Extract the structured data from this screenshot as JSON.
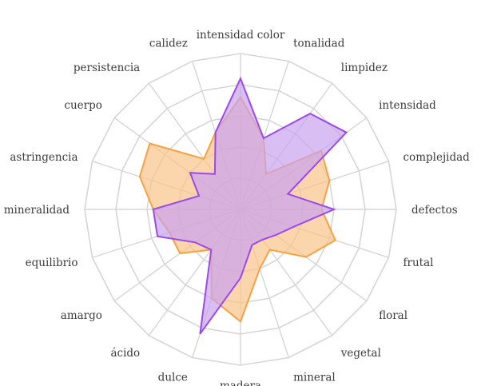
{
  "chart_data": {
    "type": "radar",
    "title": "",
    "categories": [
      "intensidad color",
      "tonalidad",
      "limpidez",
      "intensidad",
      "complejidad",
      "defectos",
      "frutal",
      "floral",
      "vegetal",
      "mineral",
      "madera",
      "dulce",
      "ácido",
      "amargo",
      "equilibrio",
      "mineralidad",
      "astringencia",
      "cuerpo",
      "persistencia",
      "calidez"
    ],
    "rlim": [
      0,
      5
    ],
    "rings": 5,
    "grid": true,
    "legend": "none",
    "series": [
      {
        "color": "#f5a243",
        "fill": "#f9c58a",
        "values": [
          3.6,
          2.4,
          1.4,
          3.2,
          3.0,
          2.6,
          3.2,
          2.6,
          1.6,
          2.0,
          3.6,
          3.0,
          1.6,
          2.4,
          2.4,
          2.8,
          3.4,
          3.6,
          2.0,
          2.6
        ]
      },
      {
        "color": "#9b4ae8",
        "fill": "#c9a3f0",
        "values": [
          4.2,
          2.4,
          3.8,
          4.2,
          1.6,
          3.0,
          1.8,
          1.4,
          1.2,
          1.2,
          2.2,
          4.2,
          1.6,
          1.8,
          2.8,
          2.8,
          1.4,
          2.0,
          1.4,
          2.6
        ]
      }
    ]
  }
}
